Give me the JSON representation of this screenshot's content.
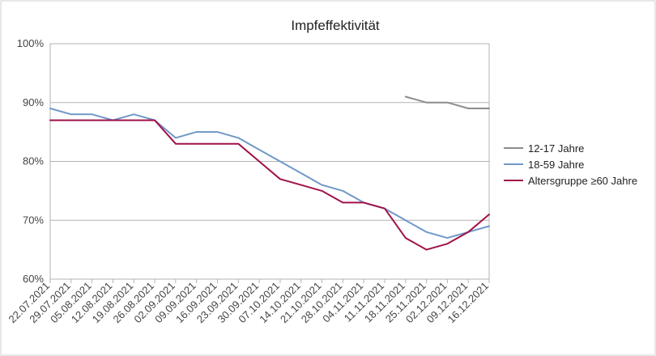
{
  "chart_data": {
    "type": "line",
    "title": "Impfeffektivität",
    "xlabel": "",
    "ylabel": "",
    "categories": [
      "22.07.2021",
      "29.07.2021",
      "05.08.2021",
      "12.08.2021",
      "19.08.2021",
      "26.08.2021",
      "02.09.2021",
      "09.09.2021",
      "16.09.2021",
      "23.09.2021",
      "30.09.2021",
      "07.10.2021",
      "14.10.2021",
      "21.10.2021",
      "28.10.2021",
      "04.11.2021",
      "11.11.2021",
      "18.11.2021",
      "25.11.2021",
      "02.12.2021",
      "09.12.2021",
      "16.12.2021"
    ],
    "ylim": [
      0.6,
      1.0
    ],
    "yticks": [
      0.6,
      0.7,
      0.8,
      0.9,
      1.0
    ],
    "ytick_labels": [
      "60%",
      "70%",
      "80%",
      "90%",
      "100%"
    ],
    "grid": true,
    "legend_position": "right",
    "series": [
      {
        "name": "12-17 Jahre",
        "color": "#8c8c8c",
        "values": [
          null,
          null,
          null,
          null,
          null,
          null,
          null,
          null,
          null,
          null,
          null,
          null,
          null,
          null,
          null,
          null,
          null,
          0.91,
          0.9,
          0.9,
          0.89,
          0.89
        ]
      },
      {
        "name": "18-59 Jahre",
        "color": "#6f98c8",
        "values": [
          0.89,
          0.88,
          0.88,
          0.87,
          0.88,
          0.87,
          0.84,
          0.85,
          0.85,
          0.84,
          0.82,
          0.8,
          0.78,
          0.76,
          0.75,
          0.73,
          0.72,
          0.7,
          0.68,
          0.67,
          0.68,
          0.69
        ]
      },
      {
        "name": "Altersgruppe ≥60 Jahre",
        "color": "#a0124a",
        "values": [
          0.87,
          0.87,
          0.87,
          0.87,
          0.87,
          0.87,
          0.83,
          0.83,
          0.83,
          0.83,
          0.8,
          0.77,
          0.76,
          0.75,
          0.73,
          0.73,
          0.72,
          0.67,
          0.65,
          0.66,
          0.68,
          0.71
        ]
      }
    ]
  }
}
